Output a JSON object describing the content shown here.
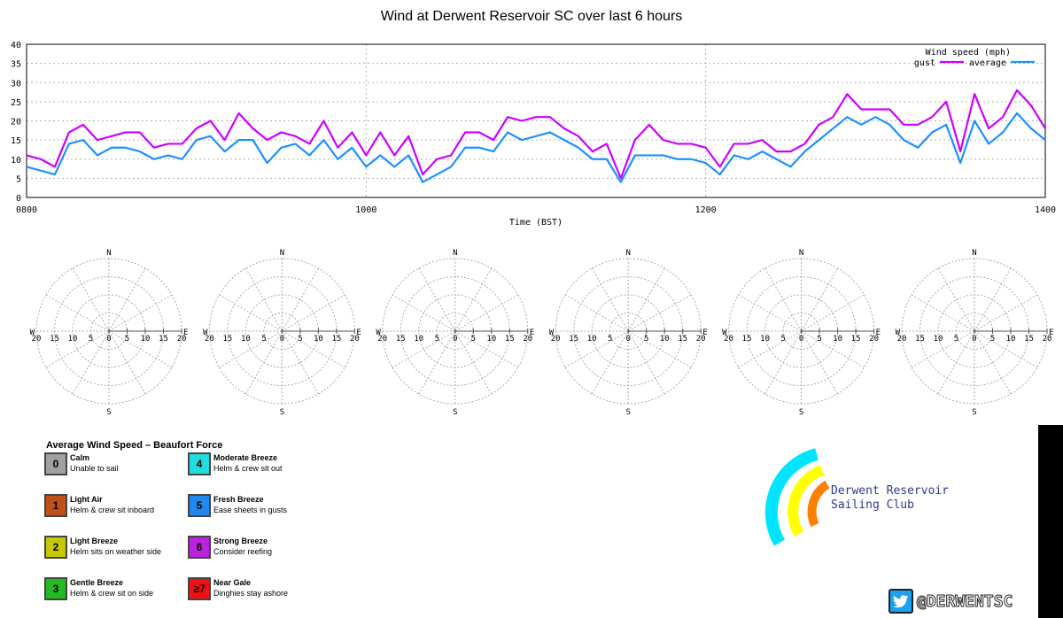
{
  "colors": {
    "gust": "#cc00ff",
    "average": "#1e90ff",
    "grid": "#b0b0b0",
    "club_text": "#2a3a8c"
  },
  "chart_data": {
    "type": "line",
    "title": "Wind at Derwent Reservoir SC over last 6 hours",
    "xlabel": "Time (BST)",
    "ylabel": "",
    "x_ticks": [
      "0800",
      "1000",
      "1200",
      "1400"
    ],
    "y_ticks": [
      "0",
      "5",
      "10",
      "15",
      "20",
      "25",
      "30",
      "35",
      "40"
    ],
    "xlim": [
      0,
      360
    ],
    "ylim": [
      0,
      40
    ],
    "grid": true,
    "legend_title": "Wind speed (mph)",
    "legend_position": "top-right",
    "x_minutes": [
      0,
      5,
      10,
      15,
      20,
      25,
      30,
      35,
      40,
      45,
      50,
      55,
      60,
      65,
      70,
      75,
      80,
      85,
      90,
      95,
      100,
      105,
      110,
      115,
      120,
      125,
      130,
      135,
      140,
      145,
      150,
      155,
      160,
      165,
      170,
      175,
      180,
      185,
      190,
      195,
      200,
      205,
      210,
      215,
      220,
      225,
      230,
      235,
      240,
      245,
      250,
      255,
      260,
      265,
      270,
      275,
      280,
      285,
      290,
      295,
      300,
      305,
      310,
      315,
      320,
      325,
      330,
      335,
      340,
      345,
      350,
      355,
      360
    ],
    "series": [
      {
        "name": "gust",
        "values": [
          11,
          10,
          8,
          17,
          19,
          15,
          16,
          17,
          17,
          13,
          14,
          14,
          18,
          20,
          15,
          22,
          18,
          15,
          17,
          16,
          14,
          20,
          13,
          17,
          11,
          17,
          11,
          16,
          6,
          10,
          11,
          17,
          17,
          15,
          21,
          20,
          21,
          21,
          18,
          16,
          12,
          14,
          5,
          15,
          19,
          15,
          14,
          14,
          13,
          8,
          14,
          14,
          15,
          12,
          12,
          14,
          19,
          21,
          27,
          23,
          23,
          23,
          19,
          19,
          21,
          25,
          12,
          27,
          18,
          21,
          28,
          24,
          18
        ]
      },
      {
        "name": "average",
        "values": [
          8,
          7,
          6,
          14,
          15,
          11,
          13,
          13,
          12,
          10,
          11,
          10,
          15,
          16,
          12,
          15,
          15,
          9,
          13,
          14,
          11,
          15,
          10,
          13,
          8,
          11,
          8,
          11,
          4,
          6,
          8,
          13,
          13,
          12,
          17,
          15,
          16,
          17,
          15,
          13,
          10,
          10,
          4,
          11,
          11,
          11,
          10,
          10,
          9,
          6,
          11,
          10,
          12,
          10,
          8,
          12,
          15,
          18,
          21,
          19,
          21,
          19,
          15,
          13,
          17,
          19,
          9,
          20,
          14,
          17,
          22,
          18,
          15
        ]
      }
    ]
  },
  "roses": {
    "count": 6,
    "labels": {
      "n": "N",
      "s": "S",
      "e": "E",
      "w": "W"
    },
    "scale": [
      "20",
      "15",
      "10",
      "5",
      "0",
      "5",
      "10",
      "15",
      "20"
    ]
  },
  "legend": {
    "title": "Average Wind Speed – Beaufort Force",
    "items": [
      {
        "num": "0",
        "name": "Calm",
        "desc": "Unable to sail",
        "color": "#a0a0a0"
      },
      {
        "num": "1",
        "name": "Light Air",
        "desc": "Helm & crew sit inboard",
        "color": "#c0501a"
      },
      {
        "num": "2",
        "name": "Light Breeze",
        "desc": "Helm sits on weather side",
        "color": "#c8c800"
      },
      {
        "num": "3",
        "name": "Gentle Breeze",
        "desc": "Helm & crew sit on side",
        "color": "#22bb22"
      },
      {
        "num": "4",
        "name": "Moderate Breeze",
        "desc": "Helm & crew sit out",
        "color": "#22dddd"
      },
      {
        "num": "5",
        "name": "Fresh Breeze",
        "desc": "Ease sheets in gusts",
        "color": "#2288ee"
      },
      {
        "num": "6",
        "name": "Strong Breeze",
        "desc": "Consider reefing",
        "color": "#bb22dd"
      },
      {
        "num": "≥7",
        "name": "Near Gale",
        "desc": "Dinghies stay ashore",
        "color": "#ee1111"
      }
    ]
  },
  "club": {
    "line1": "Derwent Reservoir",
    "line2": "Sailing Club"
  },
  "twitter": {
    "handle": "@DERWENTSC"
  }
}
